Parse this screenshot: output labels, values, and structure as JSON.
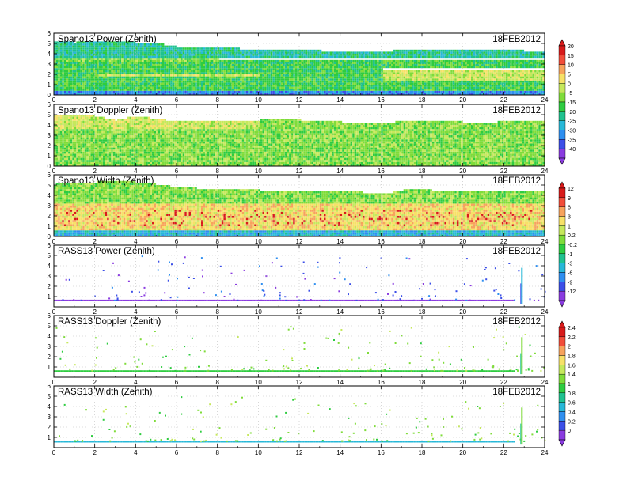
{
  "chart_data": [
    {
      "type": "heatmap",
      "title": "Spano13 Power (Zenith)",
      "date": "18FEB2012",
      "xlim": [
        0,
        24
      ],
      "ylim": [
        0,
        6
      ],
      "x_ticks": [
        0,
        2,
        4,
        6,
        8,
        10,
        12,
        14,
        16,
        18,
        20,
        22,
        24
      ],
      "y_ticks": [
        0,
        1,
        2,
        3,
        4,
        5,
        6
      ],
      "grid": true,
      "texture": "dense",
      "top_profile": [
        [
          0,
          5.1
        ],
        [
          1,
          5.0
        ],
        [
          2,
          5.2
        ],
        [
          3,
          5.1
        ],
        [
          4,
          5.0
        ],
        [
          5,
          4.9
        ],
        [
          6,
          4.6
        ],
        [
          7,
          4.5
        ],
        [
          8,
          4.5
        ],
        [
          9,
          4.4
        ],
        [
          10,
          4.4
        ],
        [
          11,
          4.3
        ],
        [
          12,
          4.3
        ],
        [
          13,
          4.2
        ],
        [
          14,
          4.2
        ],
        [
          15,
          4.1
        ],
        [
          16,
          4.0
        ],
        [
          17,
          4.4
        ],
        [
          18,
          4.4
        ],
        [
          19,
          4.3
        ],
        [
          20,
          4.2
        ],
        [
          21,
          4.4
        ],
        [
          22,
          4.3
        ],
        [
          23,
          4.2
        ],
        [
          24,
          4.2
        ]
      ],
      "features": [
        {
          "x0": 0,
          "x1": 24,
          "y0": 0,
          "y1": 0.3,
          "value": -30
        },
        {
          "x0": 0,
          "x1": 24,
          "y0": 0.3,
          "y1": 1.4,
          "value": -17
        },
        {
          "x0": 0,
          "x1": 16,
          "y0": 1.4,
          "y1": 1.9,
          "value": -12
        },
        {
          "x0": 2,
          "x1": 10,
          "y0": 1.6,
          "y1": 1.9,
          "value": 2
        },
        {
          "x0": 16,
          "x1": 24,
          "y0": 1.4,
          "y1": 2.4,
          "value": 0
        },
        {
          "x0": 0,
          "x1": 16,
          "y0": 1.9,
          "y1": 2.6,
          "value": -17
        },
        {
          "x0": 0,
          "x1": 24,
          "y0": 2.6,
          "y1": 3.4,
          "value": -17
        },
        {
          "x0": 0,
          "x1": 8,
          "y0": 3.2,
          "y1": 3.6,
          "value": -8
        },
        {
          "x0": 0,
          "x1": 24,
          "y0": 3.6,
          "y1": 6,
          "value": -22
        }
      ],
      "colorbar": {
        "labels": [
          "20",
          "15",
          "10",
          "5",
          "0",
          "-5",
          "-15",
          "-20",
          "-25",
          "-30",
          "-35",
          "-40"
        ],
        "values": [
          20,
          15,
          10,
          5,
          0,
          -5,
          -15,
          -20,
          -25,
          -30,
          -35,
          -40
        ],
        "colors": [
          "#d81b1b",
          "#f24d3a",
          "#f7a35c",
          "#f7e168",
          "#c6e85c",
          "#7fdc3a",
          "#2ecc40",
          "#1fc28f",
          "#27b8d8",
          "#2f8ff0",
          "#3c4fe8",
          "#8a3be0"
        ]
      }
    },
    {
      "type": "heatmap",
      "title": "Spano13 Doppler (Zenith)",
      "date": "18FEB2012",
      "xlim": [
        0,
        24
      ],
      "ylim": [
        0,
        6
      ],
      "x_ticks": [
        0,
        2,
        4,
        6,
        8,
        10,
        12,
        14,
        16,
        18,
        20,
        22,
        24
      ],
      "y_ticks": [
        0,
        1,
        2,
        3,
        4,
        5,
        6
      ],
      "grid": true,
      "texture": "dense",
      "top_profile": [
        [
          0,
          5.0
        ],
        [
          1,
          5.0
        ],
        [
          2,
          4.8
        ],
        [
          3,
          4.4
        ],
        [
          4,
          4.8
        ],
        [
          5,
          4.5
        ],
        [
          6,
          4.3
        ],
        [
          7,
          4.4
        ],
        [
          8,
          4.3
        ],
        [
          9,
          4.4
        ],
        [
          10,
          4.4
        ],
        [
          11,
          4.5
        ],
        [
          12,
          4.4
        ],
        [
          13,
          4.4
        ],
        [
          14,
          4.2
        ],
        [
          15,
          4.1
        ],
        [
          16,
          4.0
        ],
        [
          17,
          4.3
        ],
        [
          18,
          4.3
        ],
        [
          19,
          4.3
        ],
        [
          20,
          4.2
        ],
        [
          21,
          4.0
        ],
        [
          22,
          4.3
        ],
        [
          23,
          4.3
        ],
        [
          24,
          4.3
        ]
      ],
      "features": [
        {
          "x0": 0,
          "x1": 24,
          "y0": 0,
          "y1": 6,
          "value": -5
        },
        {
          "x0": 0,
          "x1": 10,
          "y0": 3.5,
          "y1": 5.2,
          "value": 0
        },
        {
          "x0": 16,
          "x1": 24,
          "y0": 0.5,
          "y1": 4.3,
          "value": -3
        }
      ]
    },
    {
      "type": "heatmap",
      "title": "Spano13 Width (Zenith)",
      "date": "18FEB2012",
      "xlim": [
        0,
        24
      ],
      "ylim": [
        0,
        6
      ],
      "x_ticks": [
        0,
        2,
        4,
        6,
        8,
        10,
        12,
        14,
        16,
        18,
        20,
        22,
        24
      ],
      "y_ticks": [
        0,
        1,
        2,
        3,
        4,
        5,
        6
      ],
      "grid": true,
      "texture": "dense",
      "top_profile": [
        [
          0,
          5.0
        ],
        [
          1,
          5.1
        ],
        [
          2,
          5.2
        ],
        [
          3,
          5.4
        ],
        [
          4,
          5.2
        ],
        [
          5,
          5.0
        ],
        [
          6,
          4.7
        ],
        [
          7,
          4.6
        ],
        [
          8,
          4.5
        ],
        [
          9,
          4.5
        ],
        [
          10,
          4.4
        ],
        [
          11,
          4.4
        ],
        [
          12,
          4.4
        ],
        [
          13,
          4.3
        ],
        [
          14,
          4.3
        ],
        [
          15,
          4.2
        ],
        [
          16,
          4.0
        ],
        [
          17,
          4.4
        ],
        [
          18,
          4.5
        ],
        [
          19,
          4.3
        ],
        [
          20,
          4.2
        ],
        [
          21,
          4.3
        ],
        [
          22,
          4.3
        ],
        [
          23,
          4.3
        ],
        [
          24,
          4.3
        ]
      ],
      "features": [
        {
          "x0": 0,
          "x1": 24,
          "y0": 0,
          "y1": 0.5,
          "value": -3
        },
        {
          "x0": 0,
          "x1": 24,
          "y0": 0.5,
          "y1": 3.2,
          "value": 3
        },
        {
          "x0": 0,
          "x1": 24,
          "y0": 3.2,
          "y1": 6,
          "value": 0
        }
      ],
      "colorbar": {
        "labels": [
          "12",
          "9",
          "6",
          "3",
          "1",
          "0.2",
          "-0.2",
          "-1",
          "-3",
          "-6",
          "-9",
          "-12"
        ],
        "values": [
          12,
          9,
          6,
          3,
          1,
          0.2,
          -0.2,
          -1,
          -3,
          -6,
          -9,
          -12
        ],
        "colors": [
          "#d81b1b",
          "#f24d3a",
          "#f7a35c",
          "#f7e168",
          "#c6e85c",
          "#7fdc3a",
          "#2ecc40",
          "#1fc28f",
          "#27b8d8",
          "#2f8ff0",
          "#3c4fe8",
          "#8a3be0"
        ]
      }
    },
    {
      "type": "scatter",
      "title": "RASS13 Power (Zenith)",
      "date": "18FEB2012",
      "xlim": [
        0,
        24
      ],
      "ylim": [
        0,
        6
      ],
      "x_ticks": [
        0,
        2,
        4,
        6,
        8,
        10,
        12,
        14,
        16,
        18,
        20,
        22,
        24
      ],
      "y_ticks": [
        1,
        2,
        3,
        4,
        5,
        6
      ],
      "grid": true,
      "texture": "sparse",
      "base_band": {
        "x0": 0,
        "x1": 22.5,
        "y0": 0.55,
        "y1": 0.7,
        "value": -12
      },
      "scatter_value": -10,
      "spike": {
        "x": 22.85,
        "y0": 0.3,
        "y1": 3.8,
        "value": -4
      },
      "features": [],
      "colorbar": {
        "labels": [
          "12",
          "9",
          "6",
          "3",
          "1",
          "0.2",
          "-0.2",
          "-1",
          "-3",
          "-6",
          "-9",
          "-12"
        ],
        "values": [
          12,
          9,
          6,
          3,
          1,
          0.2,
          -0.2,
          -1,
          -3,
          -6,
          -9,
          -12
        ],
        "colors": [
          "#d81b1b",
          "#f24d3a",
          "#f7a35c",
          "#f7e168",
          "#c6e85c",
          "#7fdc3a",
          "#2ecc40",
          "#1fc28f",
          "#27b8d8",
          "#2f8ff0",
          "#3c4fe8",
          "#8a3be0"
        ]
      }
    },
    {
      "type": "scatter",
      "title": "RASS13 Doppler (Zenith)",
      "date": "18FEB2012",
      "xlim": [
        0,
        24
      ],
      "ylim": [
        0,
        6
      ],
      "x_ticks": [
        0,
        2,
        4,
        6,
        8,
        10,
        12,
        14,
        16,
        18,
        20,
        22,
        24
      ],
      "y_ticks": [
        1,
        2,
        3,
        4,
        5,
        6
      ],
      "grid": true,
      "texture": "sparse",
      "base_band": {
        "x0": 0,
        "x1": 22.5,
        "y0": 0.5,
        "y1": 0.68,
        "value": 1.1
      },
      "scatter_value": 1.3,
      "spike": {
        "x": 22.85,
        "y0": 0.3,
        "y1": 3.9,
        "value": 1.2
      },
      "features": [],
      "colorbar": {
        "labels": [
          "2.4",
          "2.2",
          "2",
          "1.8",
          "1.6",
          "1.4",
          "1",
          "0.8",
          "0.6",
          "0.4",
          "0.2",
          "0"
        ],
        "values": [
          2.4,
          2.2,
          2.0,
          1.8,
          1.6,
          1.4,
          1.0,
          0.8,
          0.6,
          0.4,
          0.2,
          0
        ],
        "colors": [
          "#d81b1b",
          "#f24d3a",
          "#f7a35c",
          "#f7e168",
          "#c6e85c",
          "#7fdc3a",
          "#2ecc40",
          "#1fc28f",
          "#27b8d8",
          "#2f8ff0",
          "#3c4fe8",
          "#8a3be0"
        ]
      }
    },
    {
      "type": "scatter",
      "title": "RASS13 Width (Zenith)",
      "date": "18FEB2012",
      "xlim": [
        0,
        24
      ],
      "ylim": [
        0,
        6
      ],
      "x_ticks": [
        0,
        2,
        4,
        6,
        8,
        10,
        12,
        14,
        16,
        18,
        20,
        22,
        24
      ],
      "y_ticks": [
        1,
        2,
        3,
        4,
        5,
        6
      ],
      "grid": true,
      "texture": "sparse",
      "base_band": {
        "x0": 0,
        "x1": 22.5,
        "y0": 0.5,
        "y1": 0.68,
        "value": 0.55
      },
      "scatter_value": 1.2,
      "spike": {
        "x": 22.85,
        "y0": 0.3,
        "y1": 3.9,
        "value": 1.2
      },
      "features": []
    }
  ]
}
